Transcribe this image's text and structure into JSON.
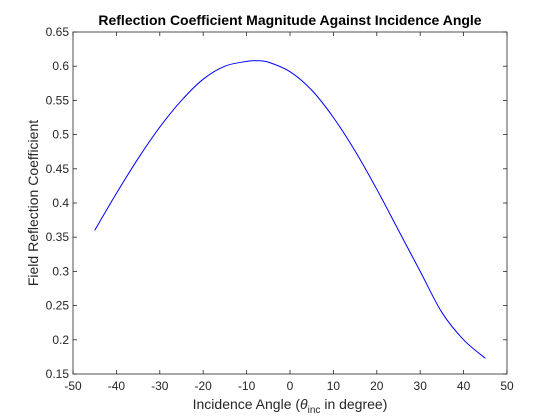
{
  "chart_data": {
    "type": "line",
    "title": "Reflection Coefficient Magnitude Against Incidence Angle",
    "xlabel": {
      "prefix": "Incidence Angle (",
      "symbol": "θ",
      "subscript": "inc",
      "suffix": " in degree)"
    },
    "ylabel": "Field Reflection Coefficient",
    "xlim": [
      -50,
      50
    ],
    "ylim": [
      0.15,
      0.65
    ],
    "xticks": [
      -50,
      -40,
      -30,
      -20,
      -10,
      0,
      10,
      20,
      30,
      40,
      50
    ],
    "xtick_labels": [
      "-50",
      "-40",
      "-30",
      "-20",
      "-10",
      "0",
      "10",
      "20",
      "30",
      "40",
      "50"
    ],
    "yticks": [
      0.15,
      0.2,
      0.25,
      0.3,
      0.35,
      0.4,
      0.45,
      0.5,
      0.55,
      0.6,
      0.65
    ],
    "ytick_labels": [
      "0.15",
      "0.2",
      "0.25",
      "0.3",
      "0.35",
      "0.4",
      "0.45",
      "0.5",
      "0.55",
      "0.6",
      "0.65"
    ],
    "grid": false,
    "box": true,
    "series": [
      {
        "color": "#0000ff",
        "x": [
          -45,
          -40,
          -35,
          -30,
          -25,
          -20,
          -15,
          -10,
          -7.5,
          -5,
          0,
          5,
          10,
          15,
          20,
          25,
          30,
          35,
          40,
          45
        ],
        "y": [
          0.36,
          0.414,
          0.465,
          0.511,
          0.55,
          0.581,
          0.6,
          0.607,
          0.608,
          0.606,
          0.592,
          0.565,
          0.525,
          0.476,
          0.42,
          0.36,
          0.3,
          0.24,
          0.2,
          0.173
        ]
      }
    ]
  }
}
